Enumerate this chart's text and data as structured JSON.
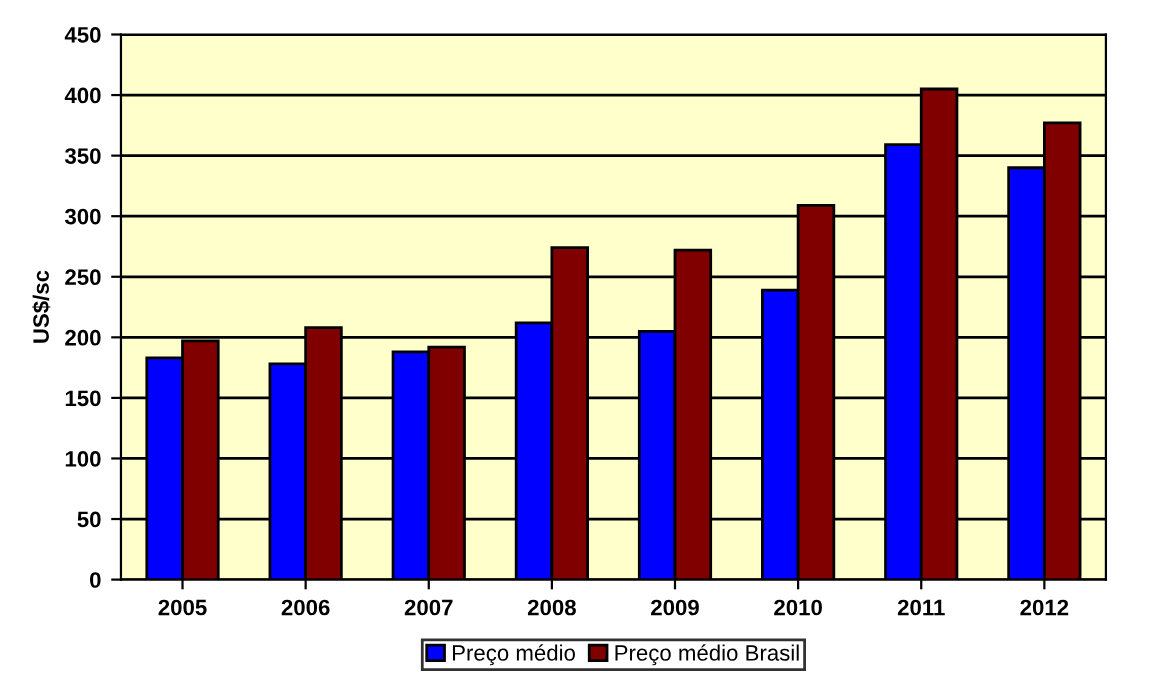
{
  "chart_data": {
    "type": "bar",
    "ylabel": "US$/sc",
    "categories": [
      "2005",
      "2006",
      "2007",
      "2008",
      "2009",
      "2010",
      "2011",
      "2012"
    ],
    "series": [
      {
        "name": "Preço médio",
        "color": "#0000ff",
        "values": [
          183,
          178,
          188,
          212,
          205,
          239,
          359,
          340
        ]
      },
      {
        "name": "Preço médio Brasil",
        "color": "#800000",
        "values": [
          197,
          208,
          192,
          274,
          272,
          309,
          405,
          377
        ]
      }
    ],
    "ylim": [
      0,
      450
    ],
    "yticks": [
      0,
      50,
      100,
      150,
      200,
      250,
      300,
      350,
      400,
      450
    ],
    "grid": "y",
    "legend": "bottom"
  }
}
